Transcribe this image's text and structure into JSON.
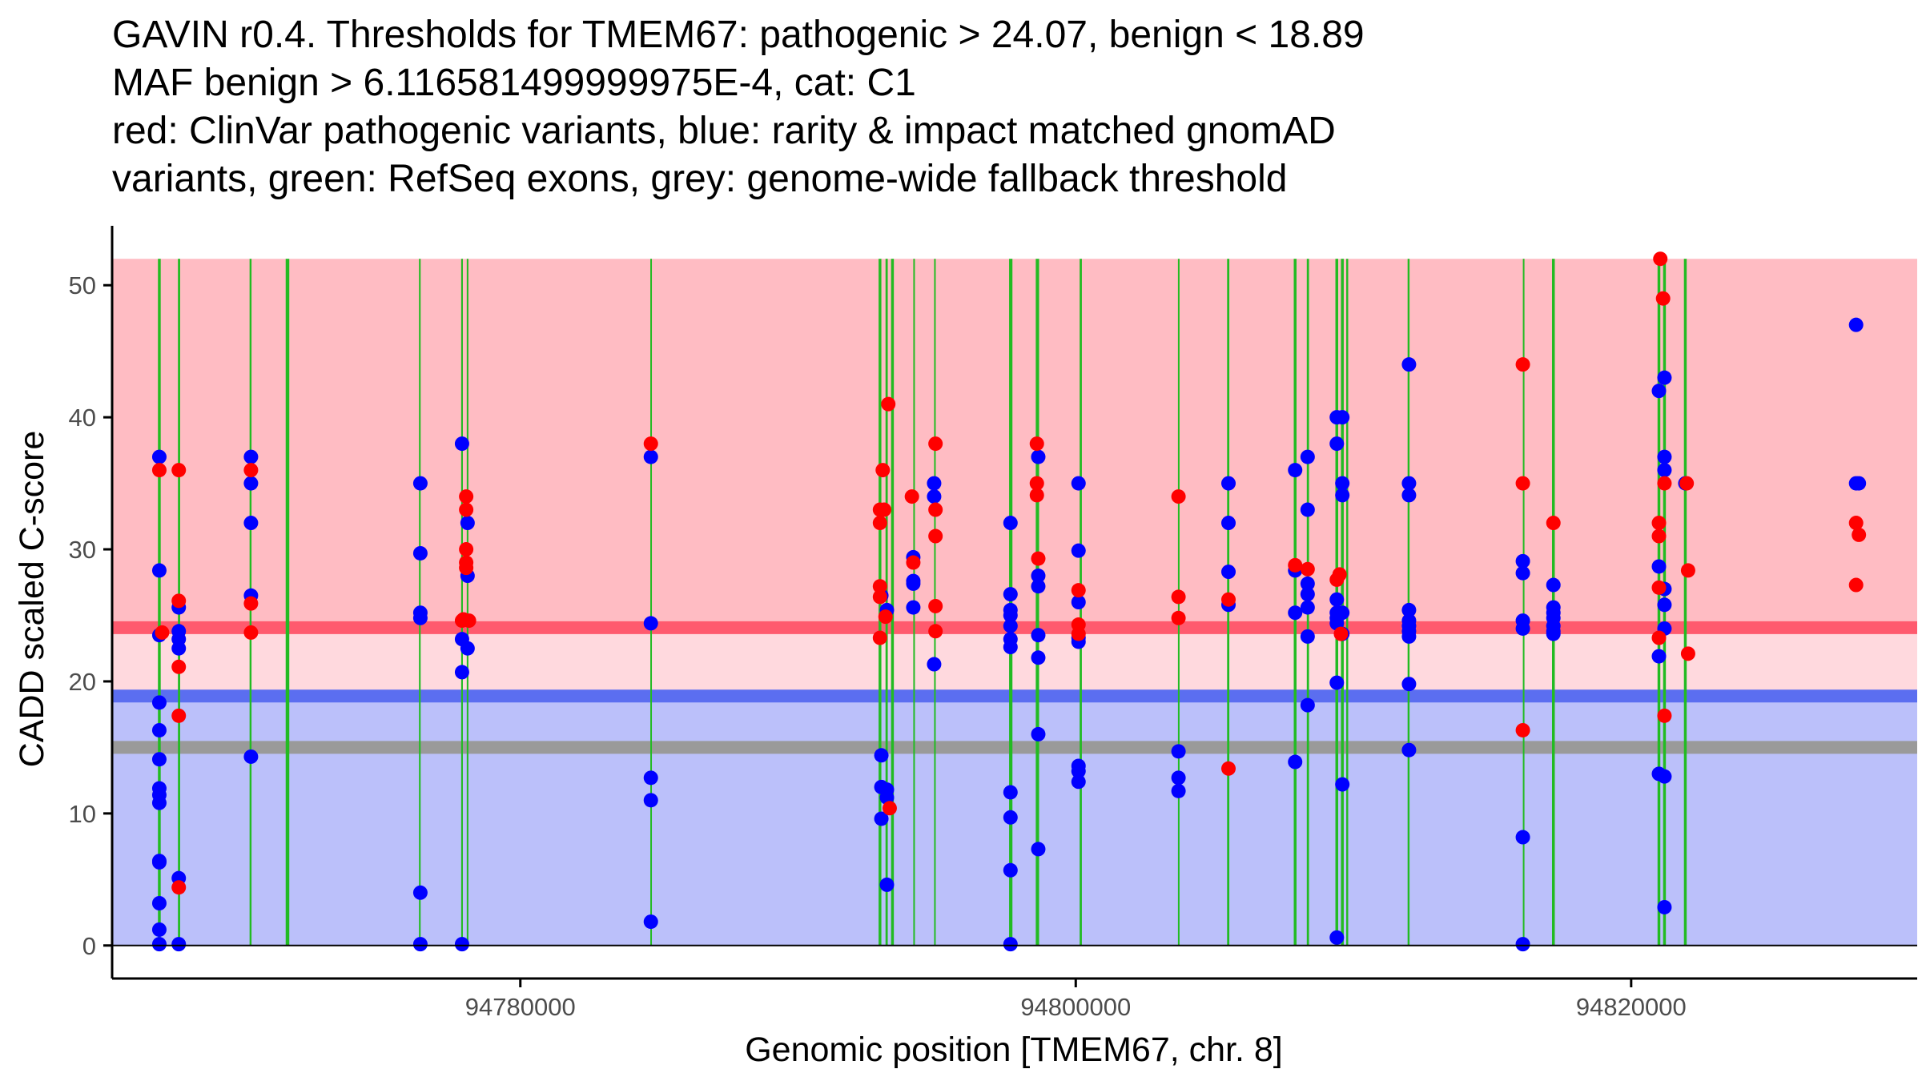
{
  "chart_data": {
    "type": "scatter",
    "title_lines": [
      "GAVIN r0.4. Thresholds for TMEM67: pathogenic > 24.07, benign < 18.89",
      "MAF benign > 6.116581499999975E-4, cat: C1",
      "red: ClinVar pathogenic variants, blue: rarity & impact matched gnomAD",
      "variants, green: RefSeq exons, grey: genome-wide fallback threshold"
    ],
    "xlabel": "Genomic position [TMEM67, chr. 8]",
    "ylabel": "CADD scaled C-score",
    "xlim": [
      94765300,
      94830300
    ],
    "ylim": [
      -2.5,
      54.5
    ],
    "x_ticks": [
      {
        "value": 94780000,
        "label": "94780000"
      },
      {
        "value": 94800000,
        "label": "94800000"
      },
      {
        "value": 94820000,
        "label": "94820000"
      }
    ],
    "y_ticks": [
      {
        "value": 0,
        "label": "0"
      },
      {
        "value": 10,
        "label": "10"
      },
      {
        "value": 20,
        "label": "20"
      },
      {
        "value": 30,
        "label": "30"
      },
      {
        "value": 40,
        "label": "40"
      },
      {
        "value": 50,
        "label": "50"
      }
    ],
    "thresholds": {
      "pathogenic": 24.07,
      "benign": 18.89,
      "genome_wide_fallback": 15.0
    },
    "regions": [
      {
        "name": "pathogenic-zone",
        "y0": 24.07,
        "y1": 52,
        "color": "#FFBCC3"
      },
      {
        "name": "intermediate-zone",
        "y0": 18.89,
        "y1": 24.07,
        "color": "#FFD9DE"
      },
      {
        "name": "benign-zone",
        "y0": 0,
        "y1": 18.89,
        "color": "#BBC0FA"
      }
    ],
    "colors": {
      "pathogenic_line": "#FF5A6E",
      "benign_line": "#5B6EF0",
      "fallback_line": "#9A9A9A",
      "exon": "#22BB22",
      "clinvar": "#FF0000",
      "gnomad": "#0000FF",
      "axis": "#000000",
      "tick_label": "#4D4D4D"
    },
    "exons": [
      {
        "start": 94766950,
        "end": 94767050
      },
      {
        "start": 94767670,
        "end": 94767750
      },
      {
        "start": 94770250,
        "end": 94770320
      },
      {
        "start": 94771550,
        "end": 94771680
      },
      {
        "start": 94776350,
        "end": 94776410
      },
      {
        "start": 94777870,
        "end": 94777930
      },
      {
        "start": 94778070,
        "end": 94778130
      },
      {
        "start": 94784680,
        "end": 94784700
      },
      {
        "start": 94792900,
        "end": 94793000
      },
      {
        "start": 94793150,
        "end": 94793230
      },
      {
        "start": 94793350,
        "end": 94793450
      },
      {
        "start": 94794150,
        "end": 94794200
      },
      {
        "start": 94794900,
        "end": 94794950
      },
      {
        "start": 94797600,
        "end": 94797720
      },
      {
        "start": 94798560,
        "end": 94798680
      },
      {
        "start": 94800140,
        "end": 94800220
      },
      {
        "start": 94803680,
        "end": 94803700
      },
      {
        "start": 94805450,
        "end": 94805530
      },
      {
        "start": 94807850,
        "end": 94807950
      },
      {
        "start": 94808320,
        "end": 94808400
      },
      {
        "start": 94809350,
        "end": 94809450
      },
      {
        "start": 94809550,
        "end": 94809650
      },
      {
        "start": 94809740,
        "end": 94809810
      },
      {
        "start": 94811950,
        "end": 94812020
      },
      {
        "start": 94816100,
        "end": 94816120
      },
      {
        "start": 94817150,
        "end": 94817250
      },
      {
        "start": 94820950,
        "end": 94821050
      },
      {
        "start": 94821150,
        "end": 94821250
      },
      {
        "start": 94821900,
        "end": 94822000
      }
    ],
    "series": [
      {
        "name": "gnomAD",
        "points": [
          [
            94767000,
            37
          ],
          [
            94767000,
            28.4
          ],
          [
            94767000,
            23.5
          ],
          [
            94767000,
            18.4
          ],
          [
            94767000,
            16.3
          ],
          [
            94767000,
            14.1
          ],
          [
            94767000,
            11.9
          ],
          [
            94767000,
            11.4
          ],
          [
            94767000,
            10.8
          ],
          [
            94767000,
            6.4
          ],
          [
            94767000,
            6.3
          ],
          [
            94767000,
            3.2
          ],
          [
            94767000,
            1.2
          ],
          [
            94767000,
            0.1
          ],
          [
            94767700,
            25.6
          ],
          [
            94767700,
            23.8
          ],
          [
            94767700,
            23.2
          ],
          [
            94767700,
            22.5
          ],
          [
            94767700,
            5.1
          ],
          [
            94767700,
            0.1
          ],
          [
            94770300,
            37
          ],
          [
            94770300,
            35
          ],
          [
            94770300,
            32
          ],
          [
            94770300,
            26.5
          ],
          [
            94770300,
            14.3
          ],
          [
            94776400,
            35
          ],
          [
            94776400,
            29.7
          ],
          [
            94776400,
            25.2
          ],
          [
            94776400,
            24.8
          ],
          [
            94776400,
            4.0
          ],
          [
            94776400,
            0.1
          ],
          [
            94777900,
            38
          ],
          [
            94777900,
            23.2
          ],
          [
            94777900,
            20.7
          ],
          [
            94777900,
            0.1
          ],
          [
            94778100,
            32
          ],
          [
            94778100,
            28
          ],
          [
            94778100,
            22.5
          ],
          [
            94784700,
            37
          ],
          [
            94784700,
            24.4
          ],
          [
            94784700,
            12.7
          ],
          [
            94784700,
            11.0
          ],
          [
            94784700,
            1.8
          ],
          [
            94793000,
            26.5
          ],
          [
            94793000,
            14.4
          ],
          [
            94793000,
            12
          ],
          [
            94793000,
            9.6
          ],
          [
            94793200,
            11.8
          ],
          [
            94793200,
            11.2
          ],
          [
            94793200,
            4.6
          ],
          [
            94793200,
            25.4
          ],
          [
            94794150,
            29.4
          ],
          [
            94794150,
            27.6
          ],
          [
            94794150,
            27.4
          ],
          [
            94794150,
            25.6
          ],
          [
            94794900,
            35
          ],
          [
            94794900,
            34
          ],
          [
            94794900,
            21.3
          ],
          [
            94797650,
            32
          ],
          [
            94797650,
            26.6
          ],
          [
            94797650,
            25.4
          ],
          [
            94797650,
            25
          ],
          [
            94797650,
            24.2
          ],
          [
            94797650,
            23.2
          ],
          [
            94797650,
            22.6
          ],
          [
            94797650,
            11.6
          ],
          [
            94797650,
            9.7
          ],
          [
            94797650,
            5.7
          ],
          [
            94797650,
            0.1
          ],
          [
            94798650,
            37
          ],
          [
            94798650,
            28
          ],
          [
            94798650,
            27.2
          ],
          [
            94798650,
            23.5
          ],
          [
            94798650,
            21.8
          ],
          [
            94798650,
            16.0
          ],
          [
            94798650,
            7.3
          ],
          [
            94800100,
            35
          ],
          [
            94800100,
            29.9
          ],
          [
            94800100,
            26
          ],
          [
            94800100,
            23.3
          ],
          [
            94800100,
            23
          ],
          [
            94800100,
            13.6
          ],
          [
            94800100,
            13.2
          ],
          [
            94800100,
            12.4
          ],
          [
            94803700,
            14.7
          ],
          [
            94803700,
            12.7
          ],
          [
            94803700,
            11.7
          ],
          [
            94805500,
            35
          ],
          [
            94805500,
            32
          ],
          [
            94805500,
            28.3
          ],
          [
            94805500,
            25.8
          ],
          [
            94807900,
            36
          ],
          [
            94807900,
            28.4
          ],
          [
            94807900,
            25.2
          ],
          [
            94807900,
            13.9
          ],
          [
            94808350,
            37
          ],
          [
            94808350,
            33
          ],
          [
            94808350,
            27.4
          ],
          [
            94808350,
            26.6
          ],
          [
            94808350,
            25.6
          ],
          [
            94808350,
            23.4
          ],
          [
            94808350,
            18.2
          ],
          [
            94809400,
            40
          ],
          [
            94809400,
            38
          ],
          [
            94809400,
            26.2
          ],
          [
            94809400,
            25.2
          ],
          [
            94809400,
            24.8
          ],
          [
            94809400,
            24.4
          ],
          [
            94809400,
            19.9
          ],
          [
            94809400,
            0.6
          ],
          [
            94809600,
            40
          ],
          [
            94809600,
            35
          ],
          [
            94809600,
            34.1
          ],
          [
            94809600,
            25.2
          ],
          [
            94809600,
            23.6
          ],
          [
            94809600,
            12.2
          ],
          [
            94812000,
            44
          ],
          [
            94812000,
            35
          ],
          [
            94812000,
            34.1
          ],
          [
            94812000,
            25.4
          ],
          [
            94812000,
            24.6
          ],
          [
            94812000,
            24.2
          ],
          [
            94812000,
            23.8
          ],
          [
            94812000,
            23.4
          ],
          [
            94812000,
            19.8
          ],
          [
            94812000,
            14.8
          ],
          [
            94816100,
            29.1
          ],
          [
            94816100,
            28.2
          ],
          [
            94816100,
            24.6
          ],
          [
            94816100,
            24.0
          ],
          [
            94816100,
            8.2
          ],
          [
            94816100,
            0.1
          ],
          [
            94817200,
            27.3
          ],
          [
            94817200,
            25.6
          ],
          [
            94817200,
            25.2
          ],
          [
            94817200,
            24.8
          ],
          [
            94817200,
            24.2
          ],
          [
            94817200,
            23.8
          ],
          [
            94817200,
            23.6
          ],
          [
            94821000,
            42
          ],
          [
            94821000,
            28.7
          ],
          [
            94821000,
            21.9
          ],
          [
            94821000,
            13.0
          ],
          [
            94821200,
            43
          ],
          [
            94821200,
            37
          ],
          [
            94821200,
            36
          ],
          [
            94821200,
            27
          ],
          [
            94821200,
            25.8
          ],
          [
            94821200,
            24
          ],
          [
            94821200,
            12.8
          ],
          [
            94821200,
            2.9
          ],
          [
            94821950,
            35
          ],
          [
            94828100,
            47
          ],
          [
            94828100,
            35
          ],
          [
            94828200,
            35
          ]
        ]
      },
      {
        "name": "ClinVar",
        "points": [
          [
            94767000,
            36
          ],
          [
            94767100,
            23.7
          ],
          [
            94767700,
            36
          ],
          [
            94767700,
            26.1
          ],
          [
            94767700,
            21.1
          ],
          [
            94767700,
            17.4
          ],
          [
            94767700,
            4.4
          ],
          [
            94770300,
            36
          ],
          [
            94770300,
            25.9
          ],
          [
            94770300,
            23.7
          ],
          [
            94777900,
            24.6
          ],
          [
            94777950,
            24.7
          ],
          [
            94778050,
            34
          ],
          [
            94778050,
            33
          ],
          [
            94778050,
            30
          ],
          [
            94778050,
            29
          ],
          [
            94778050,
            28.6
          ],
          [
            94778150,
            24.6
          ],
          [
            94784700,
            38
          ],
          [
            94792950,
            33
          ],
          [
            94792950,
            32
          ],
          [
            94792950,
            27.2
          ],
          [
            94792950,
            26.4
          ],
          [
            94792950,
            23.3
          ],
          [
            94793050,
            36
          ],
          [
            94793100,
            33
          ],
          [
            94793150,
            24.9
          ],
          [
            94793250,
            41
          ],
          [
            94793300,
            10.4
          ],
          [
            94794100,
            34
          ],
          [
            94794150,
            29
          ],
          [
            94794950,
            38
          ],
          [
            94794950,
            33
          ],
          [
            94794950,
            31
          ],
          [
            94794950,
            25.7
          ],
          [
            94794950,
            23.8
          ],
          [
            94798600,
            38
          ],
          [
            94798600,
            35
          ],
          [
            94798600,
            34.1
          ],
          [
            94798650,
            29.3
          ],
          [
            94800100,
            26.9
          ],
          [
            94800100,
            24.3
          ],
          [
            94800100,
            23.6
          ],
          [
            94803700,
            34
          ],
          [
            94803700,
            26.4
          ],
          [
            94803700,
            24.8
          ],
          [
            94805500,
            26.2
          ],
          [
            94805500,
            13.4
          ],
          [
            94807900,
            28.8
          ],
          [
            94808350,
            28.5
          ],
          [
            94809400,
            27.7
          ],
          [
            94809500,
            28.1
          ],
          [
            94809550,
            23.6
          ],
          [
            94816100,
            44
          ],
          [
            94816100,
            35
          ],
          [
            94816100,
            16.3
          ],
          [
            94817200,
            32
          ],
          [
            94821000,
            32
          ],
          [
            94821000,
            31
          ],
          [
            94821000,
            27.1
          ],
          [
            94821000,
            23.3
          ],
          [
            94821050,
            52
          ],
          [
            94821150,
            49
          ],
          [
            94821200,
            35
          ],
          [
            94821200,
            17.4
          ],
          [
            94822000,
            35
          ],
          [
            94822050,
            28.4
          ],
          [
            94822050,
            22.1
          ],
          [
            94828100,
            32
          ],
          [
            94828100,
            27.3
          ],
          [
            94828200,
            31.1
          ]
        ]
      }
    ]
  }
}
